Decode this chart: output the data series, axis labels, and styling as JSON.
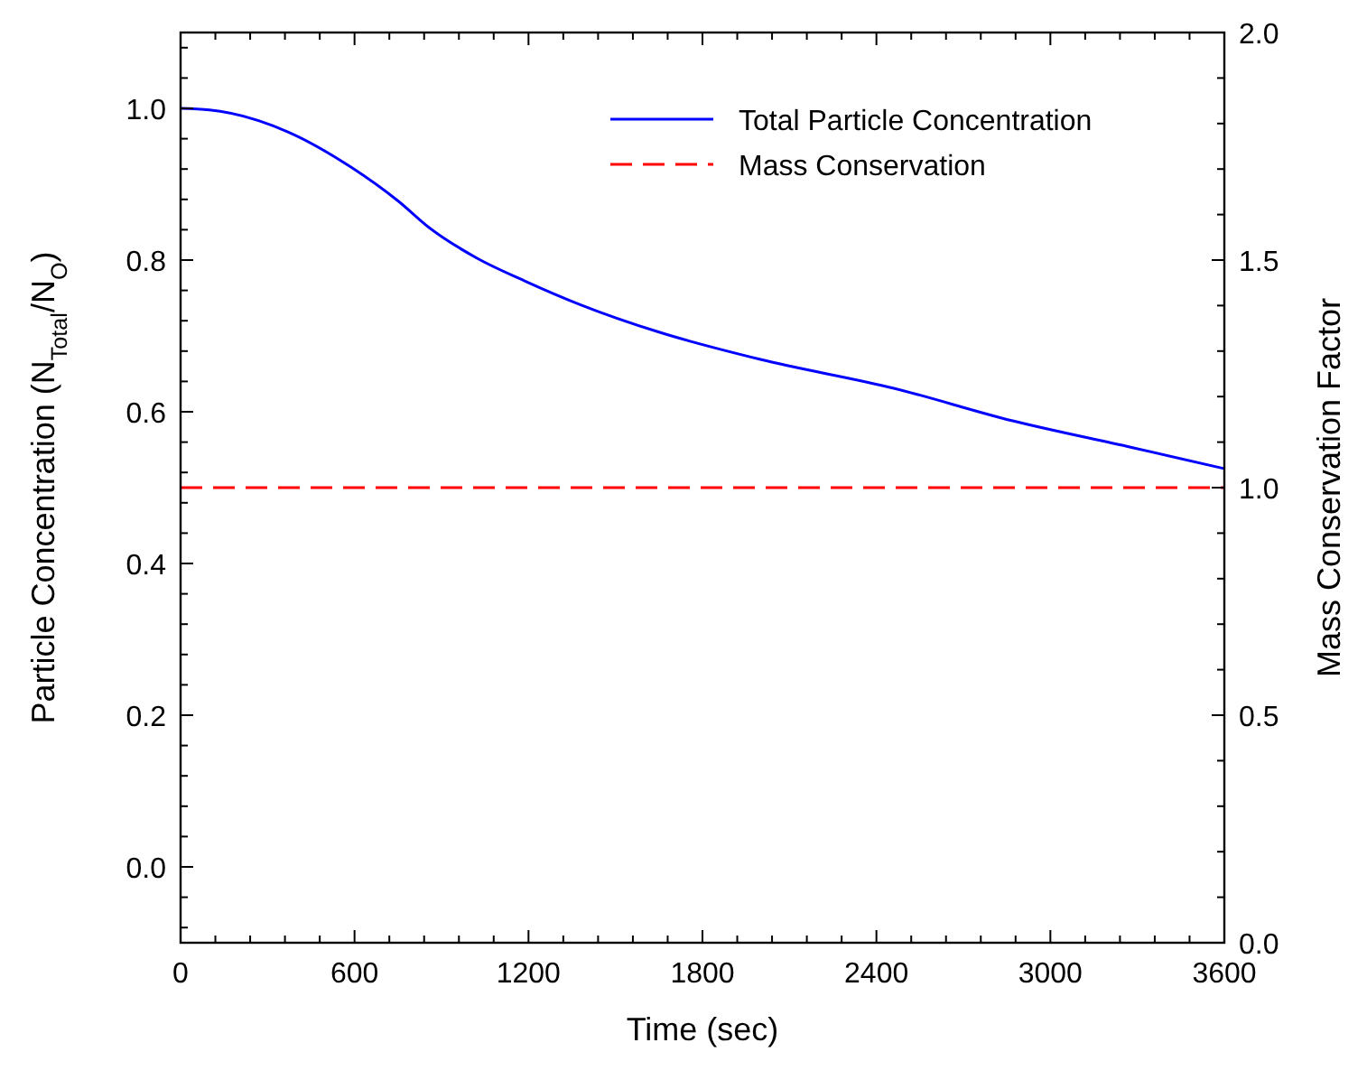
{
  "chart_data": {
    "type": "line",
    "xlabel": "Time (sec)",
    "ylabel": "Particle Concentration (N$_{Total}$/N$_{O}$)",
    "y2label": "Mass Conservation Factor",
    "xlim": [
      0,
      3600
    ],
    "xticks": [
      0,
      {
        "value": 120,
        "label": null
      },
      {
        "value": 240,
        "label": null
      },
      {
        "value": 360,
        "label": null
      },
      {
        "value": 480,
        "label": null
      },
      600,
      {
        "value": 720,
        "label": null
      },
      {
        "value": 840,
        "label": null
      },
      {
        "value": 960,
        "label": null
      },
      {
        "value": 1080,
        "label": null
      },
      1200,
      {
        "value": 1320,
        "label": null
      },
      {
        "value": 1440,
        "label": null
      },
      {
        "value": 1560,
        "label": null
      },
      {
        "value": 1680,
        "label": null
      },
      1800,
      {
        "value": 1920,
        "label": null
      },
      {
        "value": 2040,
        "label": null
      },
      {
        "value": 2160,
        "label": null
      },
      {
        "value": 2280,
        "label": null
      },
      2400,
      {
        "value": 2520,
        "label": null
      },
      {
        "value": 2640,
        "label": null
      },
      {
        "value": 2760,
        "label": null
      },
      {
        "value": 2880,
        "label": null
      },
      3000,
      {
        "value": 3120,
        "label": null
      },
      {
        "value": 3240,
        "label": null
      },
      {
        "value": 3360,
        "label": null
      },
      {
        "value": 3480,
        "label": null
      },
      3600
    ],
    "ylim": [
      -0.1,
      1.1
    ],
    "yticks": [
      {
        "value": -0.08,
        "label": null
      },
      {
        "value": -0.04,
        "label": null
      },
      {
        "value": 0,
        "label": "0.0"
      },
      {
        "value": 0.04,
        "label": null
      },
      {
        "value": 0.08,
        "label": null
      },
      {
        "value": 0.12,
        "label": null
      },
      {
        "value": 0.16,
        "label": null
      },
      {
        "value": 0.2,
        "label": "0.2"
      },
      {
        "value": 0.24,
        "label": null
      },
      {
        "value": 0.28,
        "label": null
      },
      {
        "value": 0.32,
        "label": null
      },
      {
        "value": 0.36,
        "label": null
      },
      {
        "value": 0.4,
        "label": "0.4"
      },
      {
        "value": 0.44,
        "label": null
      },
      {
        "value": 0.48,
        "label": null
      },
      {
        "value": 0.52,
        "label": null
      },
      {
        "value": 0.56,
        "label": null
      },
      {
        "value": 0.6,
        "label": "0.6"
      },
      {
        "value": 0.64,
        "label": null
      },
      {
        "value": 0.68,
        "label": null
      },
      {
        "value": 0.72,
        "label": null
      },
      {
        "value": 0.76,
        "label": null
      },
      {
        "value": 0.8,
        "label": "0.8"
      },
      {
        "value": 0.84,
        "label": null
      },
      {
        "value": 0.88,
        "label": null
      },
      {
        "value": 0.92,
        "label": null
      },
      {
        "value": 0.96,
        "label": null
      },
      {
        "value": 1,
        "label": "1.0"
      },
      {
        "value": 1.04,
        "label": null
      },
      {
        "value": 1.08,
        "label": null
      }
    ],
    "y2lim": [
      0,
      2
    ],
    "y2ticks": [
      {
        "value": 0,
        "label": "0.0"
      },
      {
        "value": 0.1,
        "label": null
      },
      {
        "value": 0.2,
        "label": null
      },
      {
        "value": 0.3,
        "label": null
      },
      {
        "value": 0.4,
        "label": null
      },
      0.5,
      {
        "value": 0.6,
        "label": null
      },
      {
        "value": 0.7,
        "label": null
      },
      {
        "value": 0.8,
        "label": null
      },
      {
        "value": 0.9,
        "label": null
      },
      {
        "value": 1,
        "label": "1.0"
      },
      {
        "value": 1.1,
        "label": null
      },
      {
        "value": 1.2,
        "label": null
      },
      {
        "value": 1.3,
        "label": null
      },
      {
        "value": 1.4,
        "label": null
      },
      1.5,
      {
        "value": 1.6,
        "label": null
      },
      {
        "value": 1.7,
        "label": null
      },
      {
        "value": 1.8,
        "label": null
      },
      {
        "value": 1.9,
        "label": null
      },
      {
        "value": 2,
        "label": "2.0"
      }
    ],
    "grid": false,
    "legend": "top right",
    "marker": "none",
    "series": [
      {
        "name": "Total Particle Concentration",
        "color": "#0000ff",
        "line_style": "solid",
        "x": [
          0,
          100,
          370,
          590,
          750,
          860,
          1020,
          1190,
          1380,
          1650,
          2000,
          2460,
          2870,
          3280,
          3600
        ],
        "values": [
          1.0,
          0.998,
          0.969,
          0.922,
          0.878,
          0.842,
          0.803,
          0.772,
          0.741,
          0.705,
          0.669,
          0.631,
          0.588,
          0.553,
          0.525
        ]
      },
      {
        "name": "Mass Conservation",
        "color": "#ff0000",
        "line_style": "dashed",
        "axis": "y2",
        "x": [
          0,
          3600
        ],
        "values": [
          1,
          1
        ]
      }
    ]
  }
}
